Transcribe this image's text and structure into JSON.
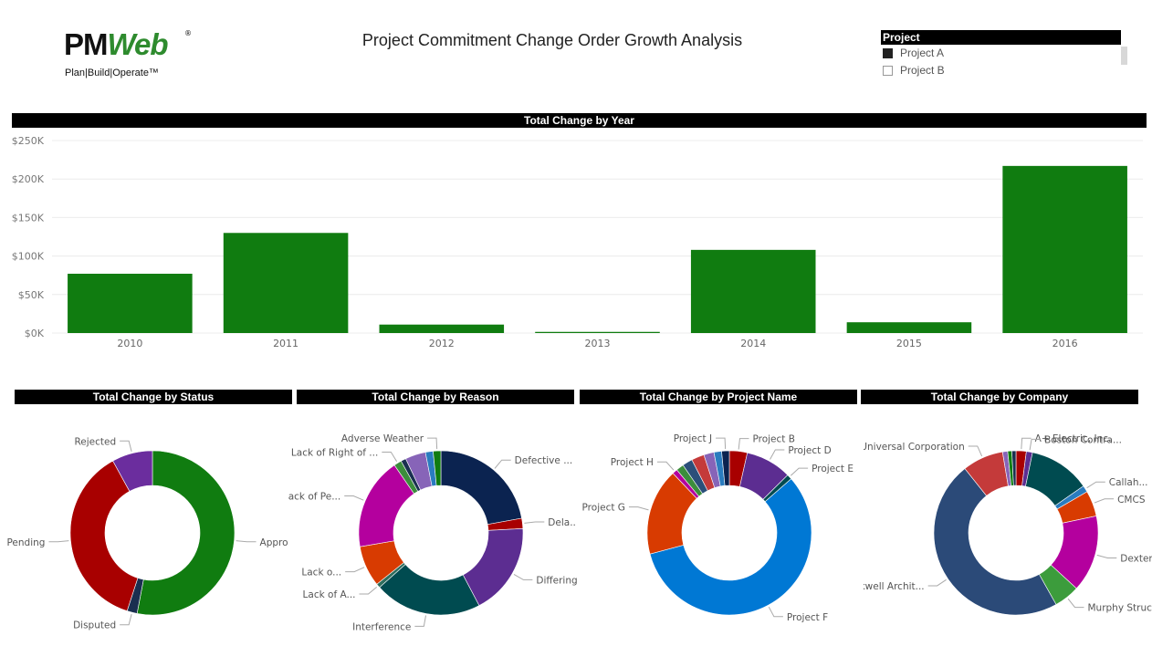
{
  "header": {
    "logo_text_pm": "PM",
    "logo_text_web": "Web",
    "logo_registered": "®",
    "logo_tagline": "Plan|Build|Operate™",
    "title": "Project Commitment Change Order Growth Analysis"
  },
  "slicer": {
    "title": "Project",
    "options": [
      {
        "label": "Project A",
        "selected": true
      },
      {
        "label": "Project B",
        "selected": false
      }
    ]
  },
  "chart_data": [
    {
      "type": "bar",
      "title": "Total Change by Year",
      "categories": [
        "2010",
        "2011",
        "2012",
        "2013",
        "2014",
        "2015",
        "2016"
      ],
      "values": [
        77000,
        130000,
        11000,
        1500,
        108000,
        14000,
        217000
      ],
      "ylim": [
        0,
        250000
      ],
      "yticks": [
        0,
        50000,
        100000,
        150000,
        200000,
        250000
      ],
      "ytick_labels": [
        "$0K",
        "$50K",
        "$100K",
        "$150K",
        "$200K",
        "$250K"
      ],
      "xlabel": "",
      "ylabel": "",
      "grid": true,
      "color": "#107c10"
    },
    {
      "type": "pie",
      "donut": true,
      "title": "Total Change by Status",
      "slices": [
        {
          "label": "Approved",
          "value": 53,
          "color": "#107c10",
          "show": true
        },
        {
          "label": "Disputed",
          "value": 2,
          "color": "#1a2f50",
          "show": true
        },
        {
          "label": "Pending",
          "value": 37,
          "color": "#a80000",
          "show": true
        },
        {
          "label": "Rejected",
          "value": 8,
          "color": "#6b2d9e",
          "show": true
        }
      ]
    },
    {
      "type": "pie",
      "donut": true,
      "title": "Total Change by Reason",
      "slices": [
        {
          "label": "Defective ...",
          "value": 22,
          "color": "#0b2350",
          "show": true
        },
        {
          "label": "Dela...",
          "value": 2,
          "color": "#a80000",
          "show": true
        },
        {
          "label": "Differing Sit...",
          "value": 18,
          "color": "#5c2d91",
          "show": true
        },
        {
          "label": "Interference",
          "value": 21,
          "color": "#004b50",
          "show": true
        },
        {
          "label": "Lack of A...",
          "value": 0.8,
          "color": "#2e6e5e",
          "show": true
        },
        {
          "label": "Lack o...",
          "value": 8,
          "color": "#d83b01",
          "show": true
        },
        {
          "label": "Lack of Pe...",
          "value": 18,
          "color": "#b4009e",
          "show": true
        },
        {
          "label": "Lack of Right of ...",
          "value": 1.5,
          "color": "#3c8d3c",
          "show": true
        },
        {
          "label": "",
          "value": 1,
          "color": "#1a2f50",
          "show": false
        },
        {
          "label": "",
          "value": 4,
          "color": "#8764b8",
          "show": false
        },
        {
          "label": "",
          "value": 1.5,
          "color": "#2a7cbf",
          "show": false
        },
        {
          "label": "Adverse Weather",
          "value": 1.5,
          "color": "#107c10",
          "show": true
        }
      ]
    },
    {
      "type": "pie",
      "donut": true,
      "title": "Total Change by Project Name",
      "slices": [
        {
          "label": "Project B",
          "value": 3.5,
          "color": "#a80000",
          "show": true
        },
        {
          "label": "Project D",
          "value": 9,
          "color": "#5c2d91",
          "show": true
        },
        {
          "label": "Project E",
          "value": 1,
          "color": "#004b50",
          "show": true
        },
        {
          "label": "Project F",
          "value": 57,
          "color": "#0078d4",
          "show": true
        },
        {
          "label": "Project G",
          "value": 17,
          "color": "#d83b01",
          "show": true
        },
        {
          "label": "Project H",
          "value": 1,
          "color": "#b4009e",
          "show": true
        },
        {
          "label": "",
          "value": 1.5,
          "color": "#3c8d3c",
          "show": false
        },
        {
          "label": "",
          "value": 2,
          "color": "#2b4f7a",
          "show": false
        },
        {
          "label": "",
          "value": 2.5,
          "color": "#c43a3a",
          "show": false
        },
        {
          "label": "",
          "value": 2,
          "color": "#8764b8",
          "show": false
        },
        {
          "label": "",
          "value": 1.5,
          "color": "#2a7cbf",
          "show": false
        },
        {
          "label": "Project J",
          "value": 1.5,
          "color": "#0b2350",
          "show": true
        }
      ]
    },
    {
      "type": "pie",
      "donut": true,
      "title": "Total Change by Company",
      "slices": [
        {
          "label": "A+ Electric, Inc.",
          "value": 2,
          "color": "#a80000",
          "show": true
        },
        {
          "label": "Boston Contra...",
          "value": 1.2,
          "color": "#5c2d91",
          "show": true
        },
        {
          "label": "",
          "value": 12,
          "color": "#004b50",
          "show": false
        },
        {
          "label": "Callah...",
          "value": 1.3,
          "color": "#2a7cbf",
          "show": true
        },
        {
          "label": "CMCS",
          "value": 5,
          "color": "#d83b01",
          "show": true
        },
        {
          "label": "Dexter Co...",
          "value": 15,
          "color": "#b4009e",
          "show": true
        },
        {
          "label": "Murphy Structural ...",
          "value": 5,
          "color": "#3c9c3c",
          "show": true
        },
        {
          "label": "Rockwell Archit...",
          "value": 47,
          "color": "#2b4a78",
          "show": true
        },
        {
          "label": "Universal Corporation",
          "value": 8,
          "color": "#c43a3a",
          "show": true
        },
        {
          "label": "",
          "value": 1,
          "color": "#8764b8",
          "show": false
        },
        {
          "label": "",
          "value": 0.8,
          "color": "#107c10",
          "show": false
        },
        {
          "label": "",
          "value": 0.8,
          "color": "#1a2f50",
          "show": false
        }
      ]
    }
  ]
}
